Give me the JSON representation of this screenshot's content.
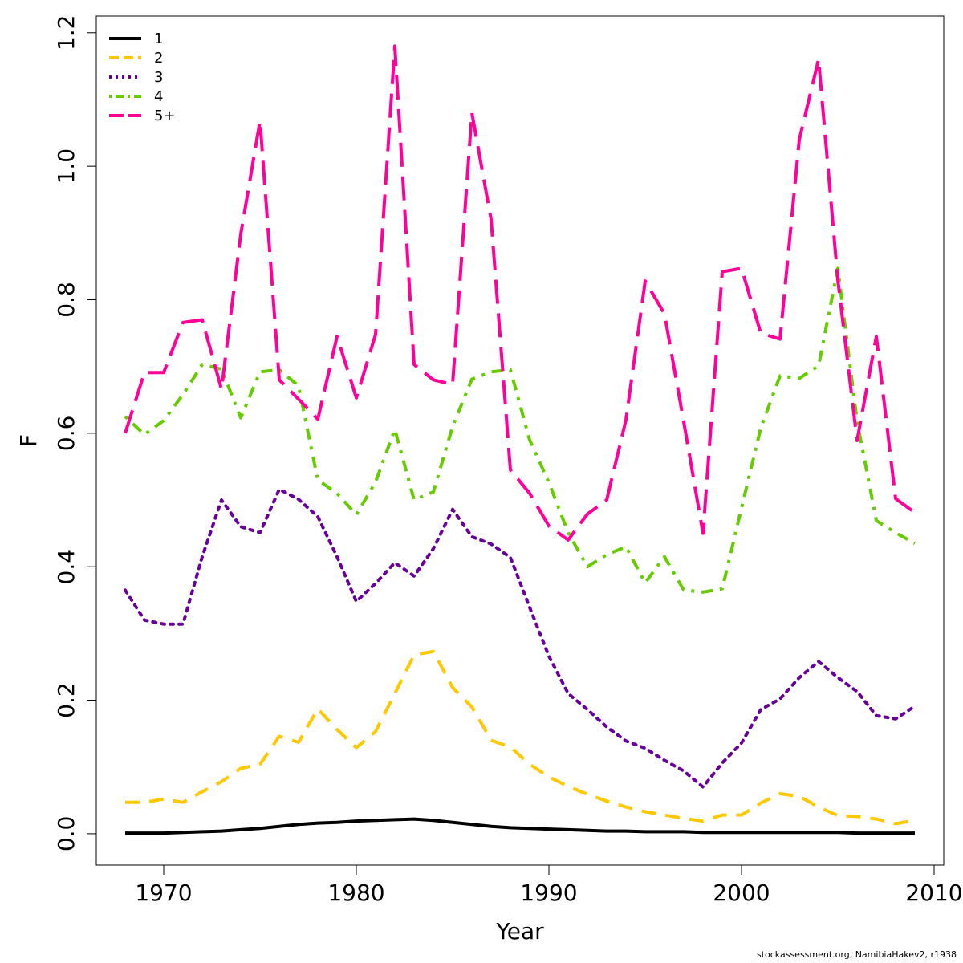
{
  "chart_data": {
    "type": "line",
    "title": "",
    "xlabel": "Year",
    "ylabel": "F",
    "xlim": [
      1966.5,
      2010.5
    ],
    "ylim": [
      -0.047,
      1.225
    ],
    "xticks": [
      1970,
      1980,
      1990,
      2000,
      2010
    ],
    "yticks": [
      0.0,
      0.2,
      0.4,
      0.6,
      0.8,
      1.0,
      1.2
    ],
    "ytick_labels": [
      "0.0",
      "0.2",
      "0.4",
      "0.6",
      "0.8",
      "1.0",
      "1.2"
    ],
    "legend_position": "top-left",
    "grid": false,
    "x": [
      1968,
      1969,
      1970,
      1971,
      1972,
      1973,
      1974,
      1975,
      1976,
      1977,
      1978,
      1979,
      1980,
      1981,
      1982,
      1983,
      1984,
      1985,
      1986,
      1987,
      1988,
      1989,
      1990,
      1991,
      1992,
      1993,
      1994,
      1995,
      1996,
      1997,
      1998,
      1999,
      2000,
      2001,
      2002,
      2003,
      2004,
      2005,
      2006,
      2007,
      2008,
      2009
    ],
    "series": [
      {
        "name": "1",
        "color": "#000000",
        "dash": "solid",
        "values": [
          0.001,
          0.001,
          0.001,
          0.002,
          0.003,
          0.004,
          0.006,
          0.008,
          0.011,
          0.014,
          0.016,
          0.017,
          0.019,
          0.02,
          0.021,
          0.022,
          0.02,
          0.017,
          0.014,
          0.011,
          0.009,
          0.008,
          0.007,
          0.006,
          0.005,
          0.004,
          0.004,
          0.003,
          0.003,
          0.003,
          0.002,
          0.002,
          0.002,
          0.002,
          0.002,
          0.002,
          0.002,
          0.002,
          0.001,
          0.001,
          0.001,
          0.001
        ]
      },
      {
        "name": "2",
        "color": "#FFC800",
        "dash": "dashed",
        "values": [
          0.047,
          0.047,
          0.052,
          0.047,
          0.063,
          0.078,
          0.098,
          0.104,
          0.146,
          0.137,
          0.187,
          0.156,
          0.129,
          0.153,
          0.21,
          0.268,
          0.273,
          0.219,
          0.19,
          0.14,
          0.13,
          0.104,
          0.085,
          0.071,
          0.059,
          0.049,
          0.04,
          0.033,
          0.028,
          0.023,
          0.019,
          0.028,
          0.028,
          0.046,
          0.06,
          0.056,
          0.04,
          0.027,
          0.026,
          0.022,
          0.015,
          0.02
        ]
      },
      {
        "name": "3",
        "color": "#660099",
        "dash": "dotted",
        "values": [
          0.365,
          0.32,
          0.314,
          0.314,
          0.415,
          0.5,
          0.46,
          0.451,
          0.516,
          0.501,
          0.475,
          0.415,
          0.348,
          0.375,
          0.406,
          0.386,
          0.427,
          0.486,
          0.445,
          0.434,
          0.414,
          0.339,
          0.266,
          0.21,
          0.186,
          0.16,
          0.139,
          0.128,
          0.11,
          0.094,
          0.07,
          0.106,
          0.136,
          0.186,
          0.202,
          0.234,
          0.258,
          0.234,
          0.213,
          0.177,
          0.172,
          0.191
        ]
      },
      {
        "name": "4",
        "color": "#66CC00",
        "dash": "dashdot",
        "values": [
          0.625,
          0.598,
          0.619,
          0.658,
          0.703,
          0.696,
          0.623,
          0.692,
          0.695,
          0.671,
          0.53,
          0.51,
          0.478,
          0.527,
          0.606,
          0.5,
          0.512,
          0.61,
          0.681,
          0.692,
          0.695,
          0.59,
          0.526,
          0.451,
          0.4,
          0.418,
          0.43,
          0.376,
          0.415,
          0.365,
          0.362,
          0.367,
          0.488,
          0.608,
          0.686,
          0.682,
          0.701,
          0.847,
          0.618,
          0.469,
          0.451,
          0.435
        ]
      },
      {
        "name": "5+",
        "color": "#FF0099",
        "dash": "longdash",
        "values": [
          0.6,
          0.691,
          0.691,
          0.766,
          0.77,
          0.666,
          0.898,
          1.068,
          0.68,
          0.651,
          0.621,
          0.745,
          0.653,
          0.748,
          1.18,
          0.703,
          0.68,
          0.673,
          1.08,
          0.92,
          0.545,
          0.51,
          0.461,
          0.44,
          0.479,
          0.5,
          0.62,
          0.828,
          0.779,
          0.617,
          0.45,
          0.842,
          0.847,
          0.75,
          0.741,
          1.04,
          1.16,
          0.83,
          0.589,
          0.745,
          0.502,
          0.481
        ]
      }
    ]
  },
  "footnote": "stockassessment.org, NamibiaHakev2, r1938"
}
